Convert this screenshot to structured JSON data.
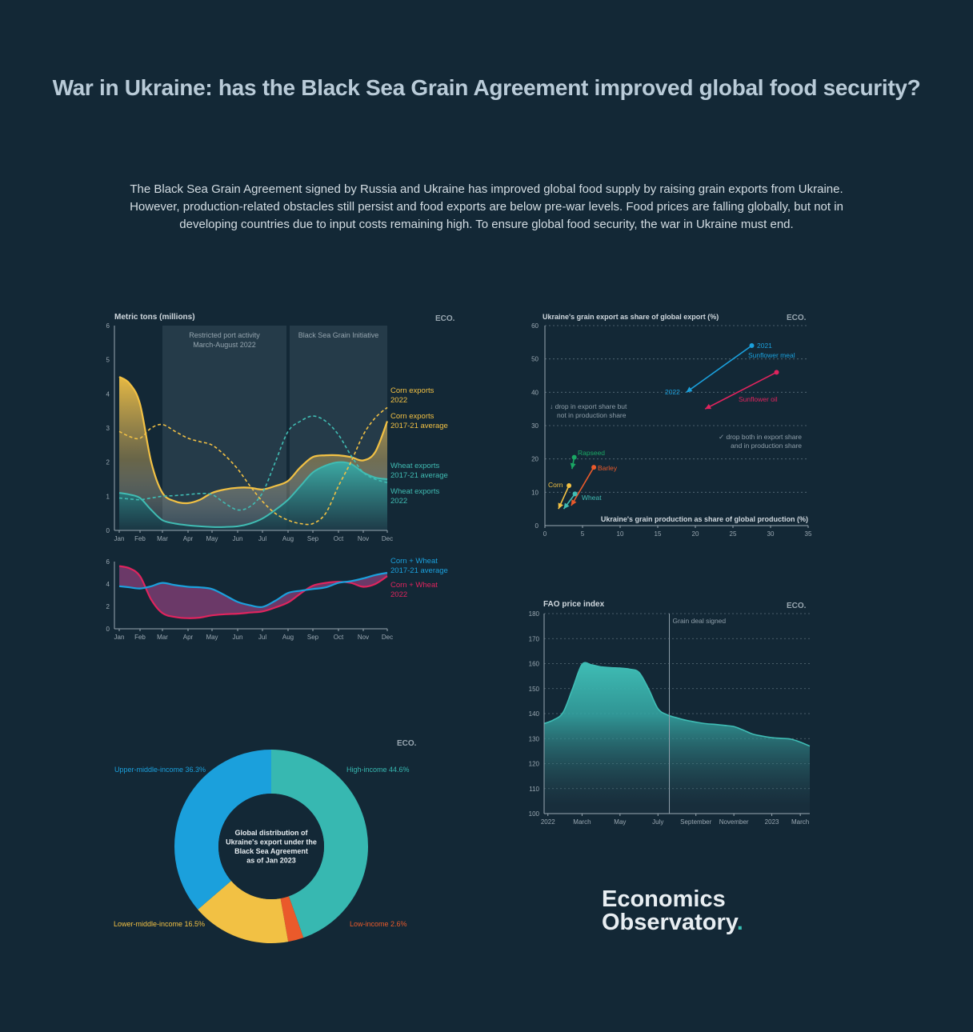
{
  "title": "War in Ukraine: has the Black Sea Grain Agreement improved global food security?",
  "intro": "The Black Sea Grain Agreement signed by Russia and Ukraine has improved global food supply by raising grain exports from Ukraine. However, production-related obstacles still persist and food exports are below pre-war levels. Food prices are falling globally, but not in developing countries due to input costs remaining high. To ensure global food security, the war in Ukraine must end.",
  "brand": {
    "line1": "Economics",
    "line2": "Observatory",
    "dot": ".",
    "badge": "ECO."
  },
  "colors": {
    "background": "#132836",
    "corn": "#f2c144",
    "wheat": "#40bcb3",
    "blue": "#1ba0dc",
    "red": "#e0245e",
    "orange": "#ea5a2b",
    "green": "#1aa764"
  },
  "chart_data": [
    {
      "id": "exports",
      "type": "area",
      "title": "Metric tons (millions)",
      "badge": "ECO.",
      "categories": [
        "Jan",
        "Feb",
        "Mar",
        "Apr",
        "May",
        "Jun",
        "Jul",
        "Aug",
        "Sep",
        "Oct",
        "Nov",
        "Dec"
      ],
      "ylim": [
        0,
        6
      ],
      "yticks": [
        0,
        1,
        2,
        3,
        4,
        5,
        6
      ],
      "shaded_regions": [
        {
          "label1": "Restricted port activity",
          "label2": "March-August 2022",
          "from": "Mar",
          "to": "Aug"
        },
        {
          "label1": "Black Sea Grain Initiative",
          "label2": "",
          "from": "Aug",
          "to": "Dec"
        }
      ],
      "series": [
        {
          "name": "Corn exports 2022",
          "label1": "Corn exports",
          "label2": "2022",
          "style": "solid",
          "color": "#f2c144",
          "x": [
            0,
            0.5,
            1,
            1.5,
            2,
            2.5,
            3,
            3.5,
            4,
            4.5,
            5,
            5.5,
            6,
            6.5,
            7,
            7.5,
            8,
            8.5,
            9,
            9.5,
            10,
            10.5,
            11
          ],
          "values": [
            4.5,
            4.3,
            3.7,
            2.0,
            1.1,
            0.85,
            0.8,
            0.9,
            1.1,
            1.2,
            1.25,
            1.25,
            1.2,
            1.3,
            1.45,
            1.85,
            2.15,
            2.2,
            2.2,
            2.15,
            2.05,
            2.3,
            3.2
          ]
        },
        {
          "name": "Corn exports 2017-21 average",
          "label1": "Corn exports",
          "label2": "2017-21 average",
          "style": "dashed",
          "color": "#f2c144",
          "x": [
            0,
            0.5,
            1,
            1.5,
            2,
            2.5,
            3,
            3.5,
            4,
            4.5,
            5,
            5.5,
            6,
            6.5,
            7,
            7.5,
            8,
            8.5,
            9,
            9.5,
            10,
            10.5,
            11
          ],
          "values": [
            2.9,
            2.75,
            2.7,
            3.0,
            3.1,
            2.9,
            2.7,
            2.6,
            2.5,
            2.2,
            1.8,
            1.3,
            0.85,
            0.5,
            0.3,
            0.2,
            0.2,
            0.5,
            1.3,
            2.0,
            2.8,
            3.3,
            3.6
          ]
        },
        {
          "name": "Wheat exports 2017-21 average",
          "label1": "Wheat exports",
          "label2": "2017-21 average",
          "style": "dashed",
          "color": "#40bcb3",
          "x": [
            0,
            0.5,
            1,
            1.5,
            2,
            2.5,
            3,
            3.5,
            4,
            4.5,
            5,
            5.5,
            6,
            6.5,
            7,
            7.5,
            8,
            8.5,
            9,
            9.5,
            10,
            10.5,
            11
          ],
          "values": [
            0.95,
            0.92,
            0.9,
            0.95,
            1.0,
            1.02,
            1.05,
            1.08,
            1.05,
            0.8,
            0.6,
            0.7,
            1.1,
            2.0,
            2.9,
            3.2,
            3.35,
            3.2,
            2.8,
            2.2,
            1.7,
            1.5,
            1.4
          ]
        },
        {
          "name": "Wheat exports 2022",
          "label1": "Wheat exports",
          "label2": "2022",
          "style": "solid",
          "color": "#40bcb3",
          "x": [
            0,
            0.5,
            1,
            1.5,
            2,
            2.5,
            3,
            3.5,
            4,
            4.5,
            5,
            5.5,
            6,
            6.5,
            7,
            7.5,
            8,
            8.5,
            9,
            9.5,
            10,
            10.5,
            11
          ],
          "values": [
            1.1,
            1.05,
            0.95,
            0.6,
            0.3,
            0.2,
            0.15,
            0.12,
            0.1,
            0.1,
            0.12,
            0.2,
            0.35,
            0.6,
            0.9,
            1.3,
            1.7,
            1.9,
            2.0,
            1.95,
            1.7,
            1.55,
            1.5
          ]
        }
      ]
    },
    {
      "id": "combined",
      "type": "area",
      "categories": [
        "Jan",
        "Feb",
        "Mar",
        "Apr",
        "May",
        "Jun",
        "Jul",
        "Aug",
        "Sep",
        "Oct",
        "Nov",
        "Dec"
      ],
      "ylim": [
        0,
        6
      ],
      "yticks": [
        0,
        2,
        4,
        6
      ],
      "series": [
        {
          "name": "Corn + Wheat 2017-21 average",
          "label1": "Corn + Wheat",
          "label2": "2017-21 average",
          "color": "#1ba0dc",
          "x": [
            0,
            0.5,
            1,
            1.5,
            2,
            2.5,
            3,
            3.5,
            4,
            4.5,
            5,
            5.5,
            6,
            6.5,
            7,
            7.5,
            8,
            8.5,
            9,
            9.5,
            10,
            10.5,
            11
          ],
          "values": [
            3.8,
            3.7,
            3.6,
            3.8,
            4.1,
            3.9,
            3.75,
            3.7,
            3.55,
            3.0,
            2.4,
            2.1,
            1.95,
            2.5,
            3.2,
            3.4,
            3.55,
            3.7,
            4.1,
            4.25,
            4.5,
            4.8,
            5.0
          ]
        },
        {
          "name": "Corn + Wheat 2022",
          "label1": "Corn + Wheat",
          "label2": "2022",
          "color": "#e0245e",
          "x": [
            0,
            0.5,
            1,
            1.5,
            2,
            2.5,
            3,
            3.5,
            4,
            4.5,
            5,
            5.5,
            6,
            6.5,
            7,
            7.5,
            8,
            8.5,
            9,
            9.5,
            10,
            10.5,
            11
          ],
          "values": [
            5.6,
            5.4,
            4.7,
            2.6,
            1.4,
            1.05,
            0.95,
            1.0,
            1.2,
            1.3,
            1.35,
            1.45,
            1.55,
            1.9,
            2.35,
            3.15,
            3.85,
            4.1,
            4.2,
            4.1,
            3.75,
            4.0,
            4.7
          ]
        }
      ]
    },
    {
      "id": "share",
      "type": "scatter",
      "title": "Ukraine's grain export as share of global export (%)",
      "xlabel": "Ukraine's grain production as share of global production (%)",
      "badge": "ECO.",
      "xlim": [
        0,
        35
      ],
      "ylim": [
        0,
        60
      ],
      "xticks": [
        0,
        5,
        10,
        15,
        20,
        25,
        30,
        35
      ],
      "yticks": [
        0,
        10,
        20,
        30,
        40,
        50,
        60
      ],
      "annotations": [
        "↓ drop in export share but",
        "not in production share",
        "✓ drop both in export share",
        "and in production share"
      ],
      "legend": {
        "year_2021": "2021",
        "year_2022": "2022"
      },
      "series": [
        {
          "name": "Sunflower meal",
          "color": "#1ba0dc",
          "from": [
            27.5,
            54
          ],
          "to": [
            18.8,
            40
          ]
        },
        {
          "name": "Sunflower oil",
          "color": "#e0245e",
          "from": [
            30.8,
            46
          ],
          "to": [
            21.3,
            35
          ]
        },
        {
          "name": "Rapseed",
          "color": "#1aa764",
          "from": [
            3.9,
            20.5
          ],
          "to": [
            3.6,
            17
          ]
        },
        {
          "name": "Barley",
          "color": "#ea5a2b",
          "from": [
            6.5,
            17.5
          ],
          "to": [
            3.5,
            6
          ]
        },
        {
          "name": "Corn",
          "color": "#f2c144",
          "from": [
            3.2,
            12
          ],
          "to": [
            1.8,
            5
          ]
        },
        {
          "name": "Wheat",
          "color": "#40bcb3",
          "from": [
            4.0,
            9.5
          ],
          "to": [
            2.5,
            5
          ]
        }
      ]
    },
    {
      "id": "fao",
      "type": "area",
      "title": "FAO price index",
      "badge": "ECO.",
      "ylim": [
        100,
        180
      ],
      "yticks": [
        100,
        110,
        120,
        130,
        140,
        150,
        160,
        170,
        180
      ],
      "x_tick_labels": [
        {
          "label": "2022",
          "m": 0.2
        },
        {
          "label": "March",
          "m": 2
        },
        {
          "label": "May",
          "m": 4
        },
        {
          "label": "July",
          "m": 6
        },
        {
          "label": "September",
          "m": 8
        },
        {
          "label": "November",
          "m": 10
        },
        {
          "label": "2023",
          "m": 12
        },
        {
          "label": "March",
          "m": 13.5
        }
      ],
      "annotation": {
        "label": "Grain deal signed",
        "m": 6.6
      },
      "x": [
        0,
        0.5,
        1,
        1.5,
        2,
        2.5,
        3,
        3.5,
        4,
        4.5,
        5,
        5.5,
        6,
        6.5,
        7,
        7.5,
        8,
        8.5,
        9,
        9.5,
        10,
        10.5,
        11,
        11.5,
        12,
        12.5,
        13,
        13.5,
        14
      ],
      "values": [
        136,
        137.5,
        140.5,
        150,
        159.7,
        159.5,
        158.7,
        158.4,
        158.2,
        157.8,
        156.5,
        150,
        142,
        139.5,
        138.3,
        137.3,
        136.6,
        136,
        135.7,
        135.3,
        134.8,
        133.4,
        131.8,
        131,
        130.4,
        130.1,
        129.8,
        128.6,
        127
      ]
    },
    {
      "id": "distribution",
      "type": "pie",
      "badge": "ECO.",
      "center_text": [
        "Global distribution of",
        "Ukraine's export under the",
        "Black Sea Agreement",
        "as of Jan 2023"
      ],
      "slices": [
        {
          "label": "High-income 44.6%",
          "value": 44.6,
          "color": "#37b8b1"
        },
        {
          "label": "Low-income 2.6%",
          "value": 2.6,
          "color": "#ea5a2b"
        },
        {
          "label": "Lower-middle-income 16.5%",
          "value": 16.5,
          "color": "#f2c144"
        },
        {
          "label": "Upper-middle-income 36.3%",
          "value": 36.3,
          "color": "#1ba0dc"
        }
      ]
    }
  ]
}
